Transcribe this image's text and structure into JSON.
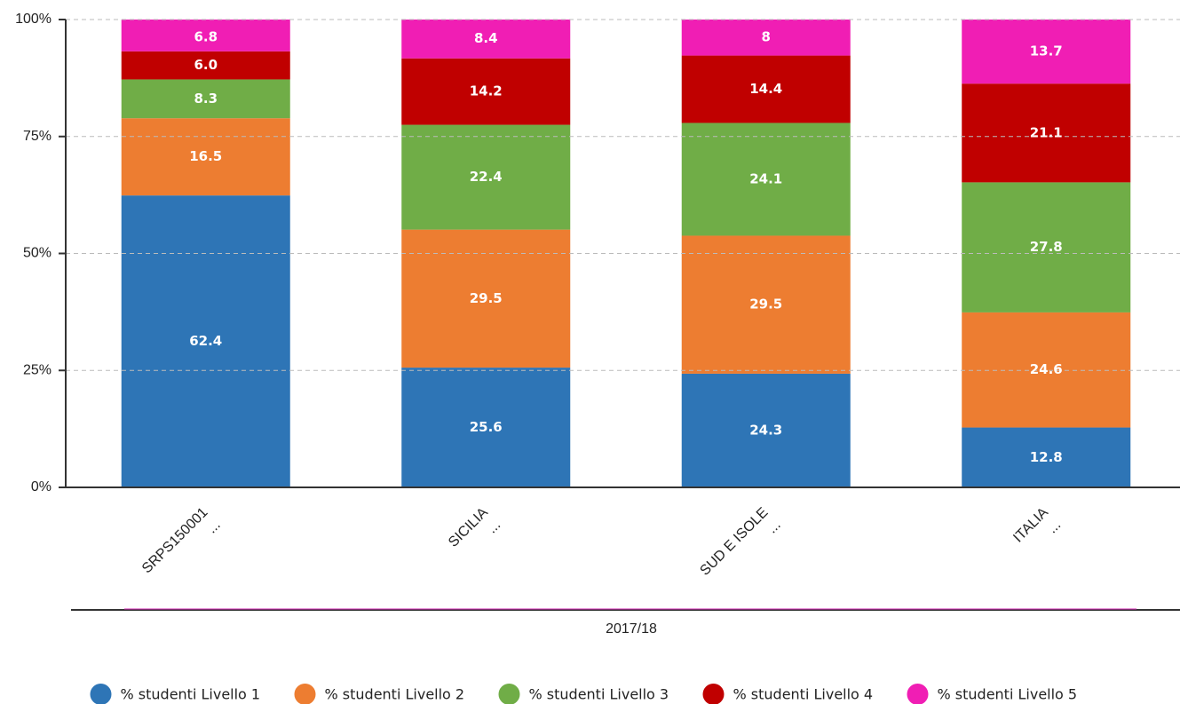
{
  "chart_data": {
    "type": "bar",
    "stacked": true,
    "categories": [
      "SRPS150001",
      "SICILIA",
      "SUD E ISOLE",
      "ITALIA"
    ],
    "category_sublabels": [
      "...",
      "...",
      "...",
      "..."
    ],
    "x_label": "2017/18",
    "series": [
      {
        "name": "% studenti Livello 1",
        "color": "#2e75b6",
        "values": [
          62.4,
          25.6,
          24.3,
          12.8
        ]
      },
      {
        "name": "% studenti Livello 2",
        "color": "#ed7d31",
        "values": [
          16.5,
          29.5,
          29.5,
          24.6
        ]
      },
      {
        "name": "% studenti Livello 3",
        "color": "#70ad47",
        "values": [
          8.3,
          22.4,
          24.1,
          27.8
        ]
      },
      {
        "name": "% studenti Livello 4",
        "color": "#c00000",
        "values": [
          6,
          14.2,
          14.4,
          21.1
        ],
        "value_labels": [
          "6.0",
          "14.2",
          "14.4",
          "21.1"
        ]
      },
      {
        "name": "% studenti Livello 5",
        "color": "#f01eb4",
        "values": [
          6.8,
          8.4,
          8,
          13.7
        ]
      }
    ],
    "ylim": [
      0,
      100
    ],
    "yticks": [
      {
        "value": 0,
        "label": "0%"
      },
      {
        "value": 25,
        "label": "25%"
      },
      {
        "value": 50,
        "label": "50%"
      },
      {
        "value": 75,
        "label": "75%"
      },
      {
        "value": 100,
        "label": "100%"
      }
    ],
    "grid": true,
    "legend": "bottom"
  }
}
